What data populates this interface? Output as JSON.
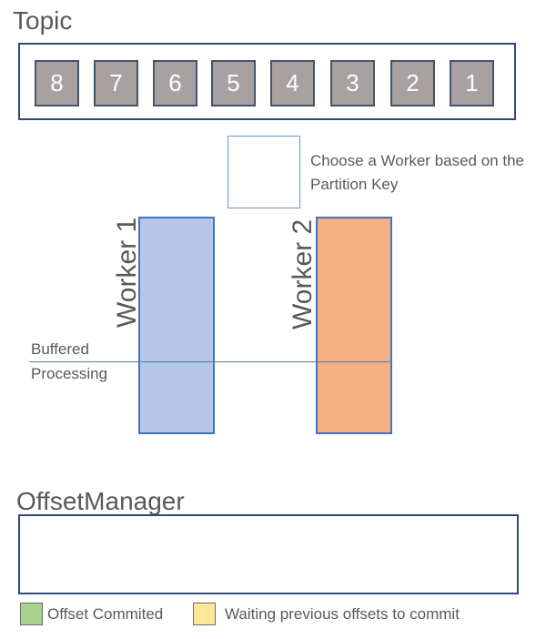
{
  "topic": {
    "title": "Topic",
    "messages": [
      "8",
      "7",
      "6",
      "5",
      "4",
      "3",
      "2",
      "1"
    ]
  },
  "dispatcher": {
    "caption": "Choose a Worker based on the Partition Key"
  },
  "workers": [
    {
      "label": "Worker 1",
      "color": "#b4c7e7"
    },
    {
      "label": "Worker 2",
      "color": "#f4b183"
    }
  ],
  "buffer": {
    "upper_label": "Buffered",
    "lower_label": "Processing"
  },
  "offset_manager": {
    "title": "OffsetManager"
  },
  "legend": [
    {
      "label": "Offset Commited",
      "color": "#a9d18e"
    },
    {
      "label": "Waiting previous offsets to commit",
      "color": "#ffe699"
    }
  ]
}
